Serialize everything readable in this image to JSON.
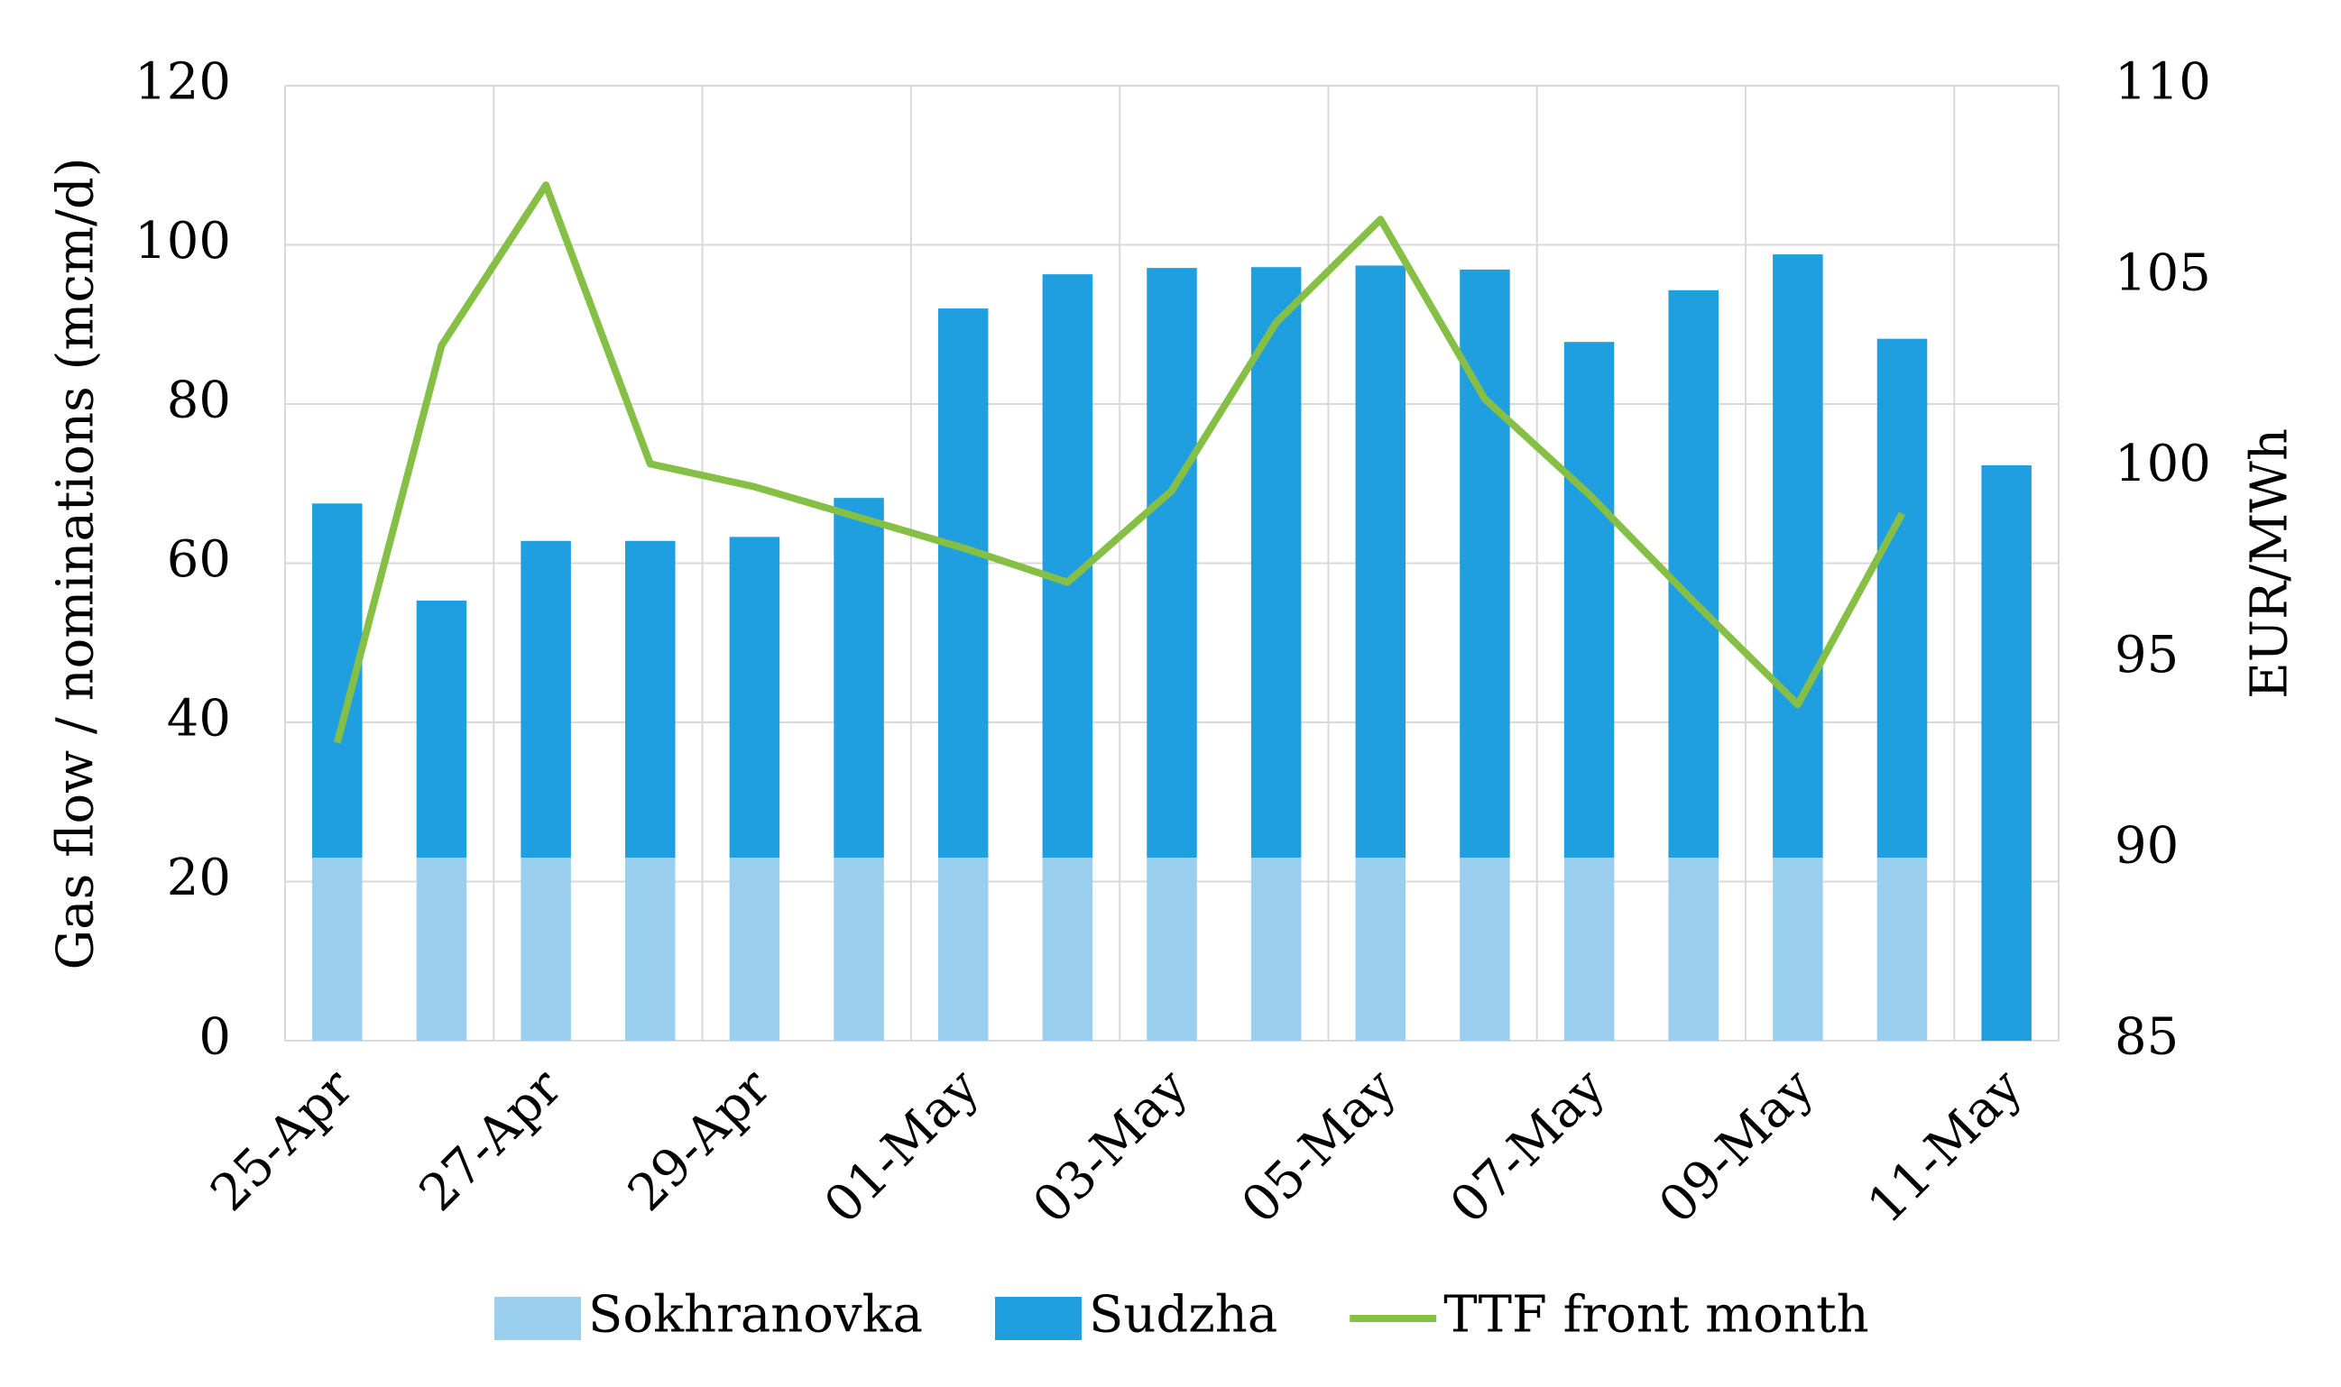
{
  "chart_data": {
    "type": "bar-line",
    "categories": [
      "25-Apr",
      null,
      "27-Apr",
      null,
      "29-Apr",
      null,
      "01-May",
      null,
      "03-May",
      null,
      "05-May",
      null,
      "07-May",
      null,
      "09-May",
      null,
      "11-May"
    ],
    "series": [
      {
        "name": "Sokhranovka",
        "type": "bar",
        "color": "#9bcfef",
        "values": [
          23,
          23,
          23,
          23,
          23,
          23,
          23,
          23,
          23,
          23,
          23,
          23,
          23,
          23,
          23,
          23,
          0
        ]
      },
      {
        "name": "Sudzha",
        "type": "bar",
        "color": "#1f9fdf",
        "values": [
          44.5,
          32.3,
          39.8,
          39.8,
          40.3,
          45.2,
          69,
          73.3,
          74.1,
          74.2,
          74.4,
          73.9,
          64.8,
          71.3,
          75.8,
          65.2,
          72.3
        ]
      },
      {
        "name": "TTF front month",
        "type": "line",
        "axis": "y2",
        "color": "#86bf45",
        "values": [
          92.8,
          103.2,
          107.4,
          100.1,
          99.5,
          98.7,
          97.9,
          97.0,
          99.4,
          103.8,
          106.5,
          101.8,
          99.3,
          96.5,
          93.8,
          98.8,
          null
        ]
      }
    ],
    "ylabel": "Gas flow / nominations (mcm/d)",
    "y2label": "EUR/MWh",
    "ylim": [
      0,
      120
    ],
    "yticks": [
      0,
      20,
      40,
      60,
      80,
      100,
      120
    ],
    "y2lim": [
      85,
      110
    ],
    "y2ticks": [
      85,
      90,
      95,
      100,
      105,
      110
    ],
    "grid": true,
    "legend": "bottom"
  }
}
